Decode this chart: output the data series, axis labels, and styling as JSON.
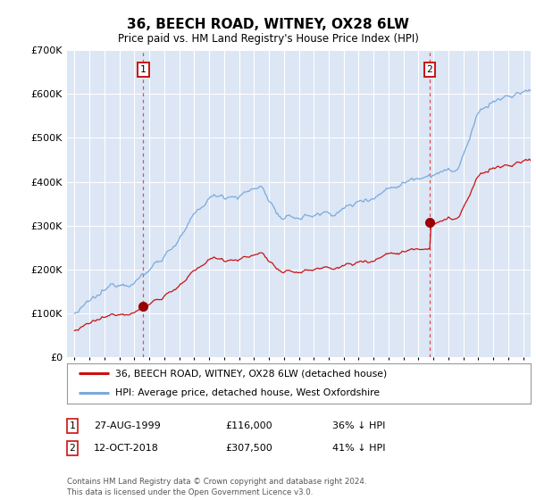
{
  "title": "36, BEECH ROAD, WITNEY, OX28 6LW",
  "subtitle": "Price paid vs. HM Land Registry's House Price Index (HPI)",
  "ylim": [
    0,
    700000
  ],
  "yticks": [
    0,
    100000,
    200000,
    300000,
    400000,
    500000,
    600000,
    700000
  ],
  "bg_color": "#dce6f5",
  "grid_color": "#ffffff",
  "sale1_year": 1999,
  "sale1_month": 8,
  "sale1_price": 116000,
  "sale2_year": 2018,
  "sale2_month": 10,
  "sale2_price": 307500,
  "hpi_line_color": "#7aaadd",
  "price_line_color": "#cc1111",
  "vline_color": "#dd3333",
  "marker_color": "#990000",
  "legend1": "36, BEECH ROAD, WITNEY, OX28 6LW (detached house)",
  "legend2": "HPI: Average price, detached house, West Oxfordshire",
  "footer": "Contains HM Land Registry data © Crown copyright and database right 2024.\nThis data is licensed under the Open Government Licence v3.0.",
  "table_row1": [
    "1",
    "27-AUG-1999",
    "£116,000",
    "36% ↓ HPI"
  ],
  "table_row2": [
    "2",
    "12-OCT-2018",
    "£307,500",
    "41% ↓ HPI"
  ],
  "hpi_seed": 12345,
  "price_seed": 67890
}
